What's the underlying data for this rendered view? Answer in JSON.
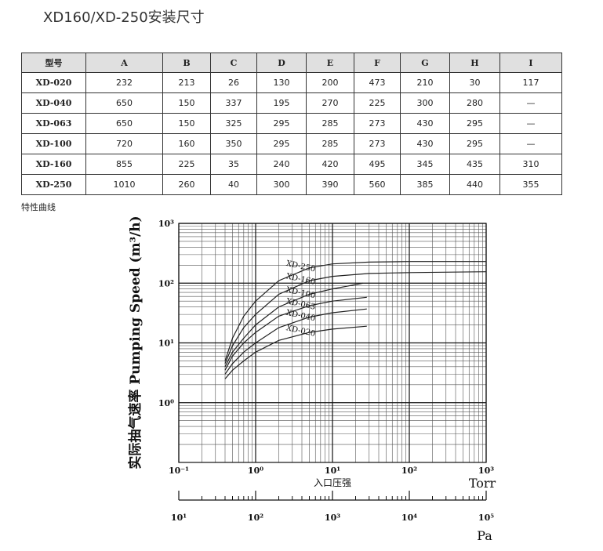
{
  "header": {
    "title": "XD160/XD-250安装尺寸"
  },
  "table": {
    "columns": [
      "型号",
      "A",
      "B",
      "C",
      "D",
      "E",
      "F",
      "G",
      "H",
      "I"
    ],
    "rows": [
      [
        "XD-020",
        "232",
        "213",
        "26",
        "130",
        "200",
        "473",
        "210",
        "30",
        "117"
      ],
      [
        "XD-040",
        "650",
        "150",
        "337",
        "195",
        "270",
        "225",
        "300",
        "280",
        "—"
      ],
      [
        "XD-063",
        "650",
        "150",
        "325",
        "295",
        "285",
        "273",
        "430",
        "295",
        "—"
      ],
      [
        "XD-100",
        "720",
        "160",
        "350",
        "295",
        "285",
        "273",
        "430",
        "295",
        "—"
      ],
      [
        "XD-160",
        "855",
        "225",
        "35",
        "240",
        "420",
        "495",
        "345",
        "435",
        "310"
      ],
      [
        "XD-250",
        "1010",
        "260",
        "40",
        "300",
        "390",
        "560",
        "385",
        "440",
        "355"
      ]
    ]
  },
  "caption": "特性曲线",
  "chart_data": {
    "type": "line",
    "xscale": "log",
    "yscale": "log",
    "grid": true,
    "color": "#222",
    "ylabel": "实际抽气速率  Pumping Speed (m³/h)",
    "xlabel": "入口压强",
    "xunit": "Torr",
    "x2unit": "Pa",
    "xlim": [
      0.1,
      1000
    ],
    "ylim": [
      0.1,
      1000
    ],
    "xticks": [
      {
        "value": 0.1,
        "label": "10⁻¹"
      },
      {
        "value": 1,
        "label": "10⁰"
      },
      {
        "value": 10,
        "label": "10¹"
      },
      {
        "value": 100,
        "label": "10²"
      },
      {
        "value": 1000,
        "label": "10³"
      }
    ],
    "yticks": [
      {
        "value": 1,
        "label": "10⁰"
      },
      {
        "value": 10,
        "label": "10¹"
      },
      {
        "value": 100,
        "label": "10²"
      },
      {
        "value": 1000,
        "label": "10³"
      }
    ],
    "x2lim": [
      10,
      100000
    ],
    "x2ticks": [
      {
        "value": 10,
        "label": "10¹"
      },
      {
        "value": 100,
        "label": "10²"
      },
      {
        "value": 1000,
        "label": "10³"
      },
      {
        "value": 10000,
        "label": "10⁴"
      },
      {
        "value": 100000,
        "label": "10⁵"
      }
    ],
    "series": [
      {
        "name": "XD-250",
        "x": [
          0.4,
          0.5,
          0.7,
          1,
          2,
          5,
          10,
          30,
          100,
          1000
        ],
        "values": [
          5,
          12,
          28,
          50,
          110,
          180,
          210,
          225,
          230,
          230
        ]
      },
      {
        "name": "XD-160",
        "x": [
          0.4,
          0.5,
          0.7,
          1,
          2,
          5,
          10,
          30,
          100,
          1000
        ],
        "values": [
          4.5,
          9,
          18,
          30,
          65,
          110,
          130,
          145,
          150,
          155
        ]
      },
      {
        "name": "XD-100",
        "x": [
          0.4,
          0.5,
          0.7,
          1,
          2,
          5,
          10,
          25
        ],
        "values": [
          4,
          7,
          12,
          20,
          40,
          65,
          80,
          100
        ]
      },
      {
        "name": "XD-063",
        "x": [
          0.4,
          0.5,
          0.7,
          1,
          2,
          5,
          10,
          28
        ],
        "values": [
          3.5,
          6,
          10,
          15,
          28,
          42,
          50,
          58
        ]
      },
      {
        "name": "XD-040",
        "x": [
          0.4,
          0.5,
          0.7,
          1,
          2,
          5,
          10,
          28
        ],
        "values": [
          3,
          4.5,
          7,
          10,
          18,
          27,
          32,
          37
        ]
      },
      {
        "name": "XD-020",
        "x": [
          0.4,
          0.5,
          0.7,
          1,
          2,
          5,
          10,
          28
        ],
        "values": [
          2.5,
          3.5,
          5,
          7,
          11,
          15,
          17,
          19
        ]
      }
    ]
  }
}
